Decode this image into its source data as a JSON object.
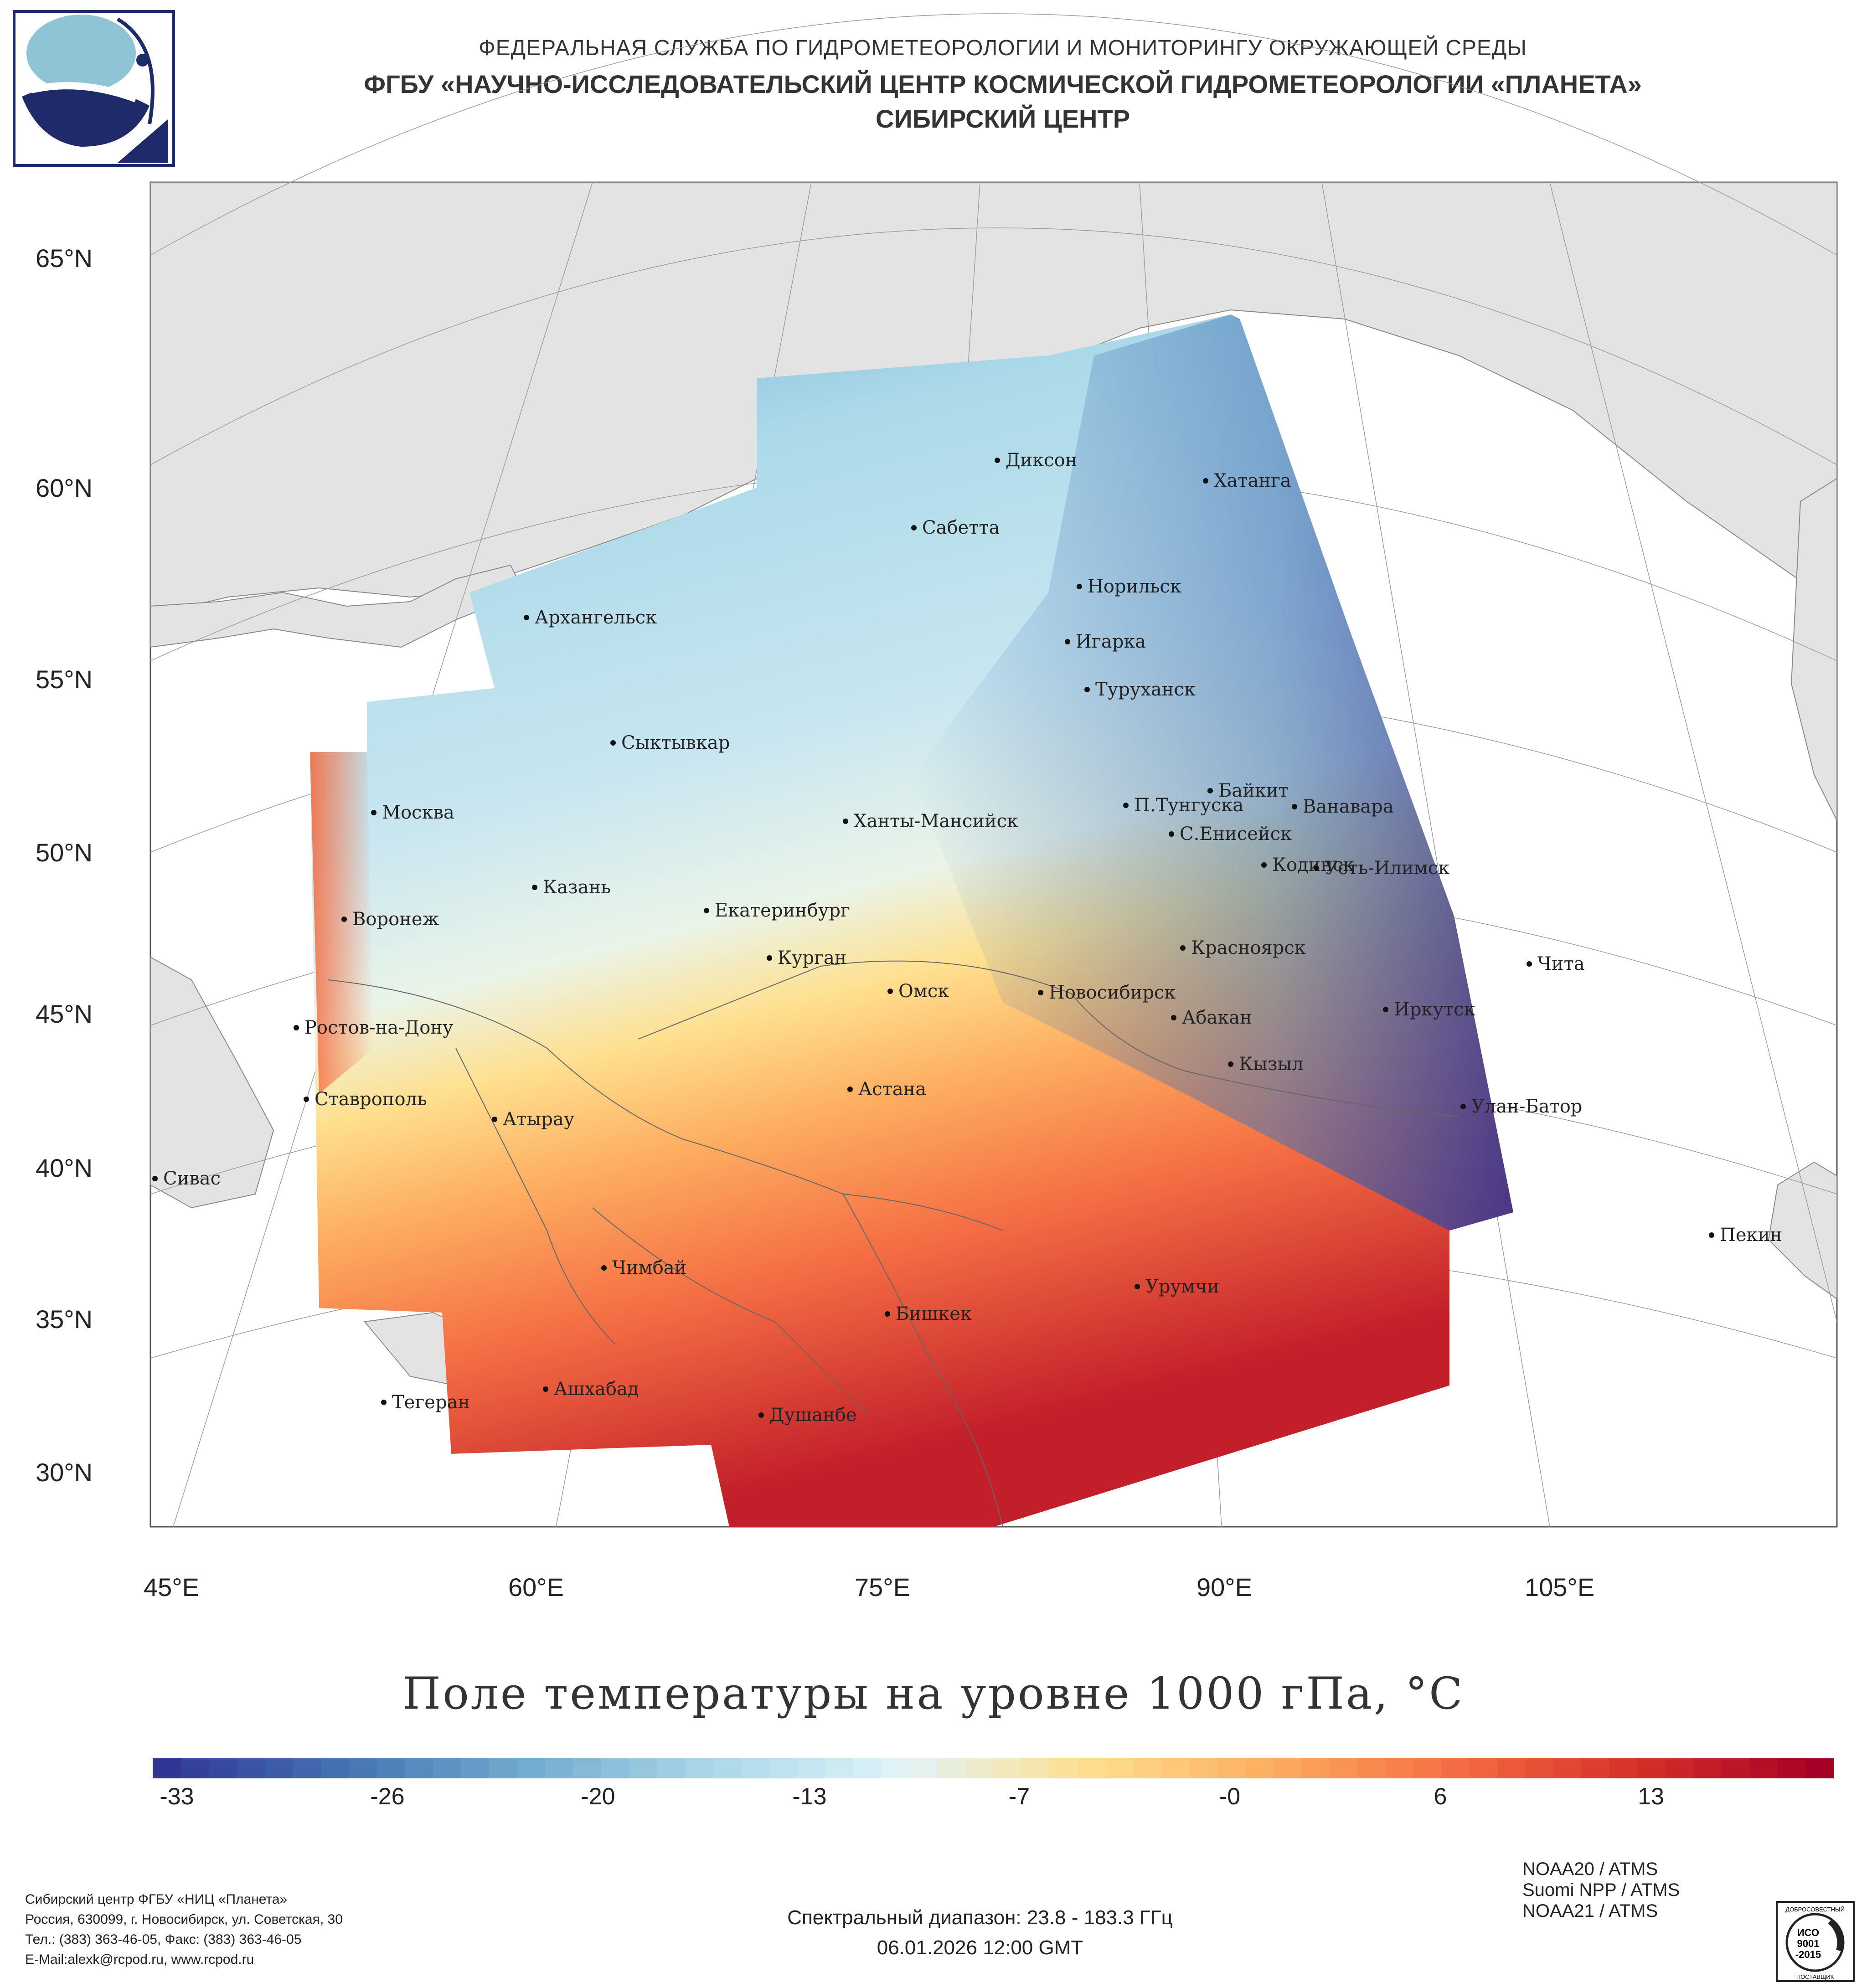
{
  "header": {
    "line1": "ФЕДЕРАЛЬНАЯ СЛУЖБА ПО ГИДРОМЕТЕОРОЛОГИИ И МОНИТОРИНГУ ОКРУЖАЮЩЕЙ СРЕДЫ",
    "line2": "ФГБУ «НАУЧНО-ИССЛЕДОВАТЕЛЬСКИЙ ЦЕНТР КОСМИЧЕСКОЙ ГИДРОМЕТЕОРОЛОГИИ «ПЛАНЕТА»",
    "line3": "СИБИРСКИЙ ЦЕНТР"
  },
  "map": {
    "lat_labels": [
      "65°N",
      "60°N",
      "55°N",
      "50°N",
      "45°N",
      "40°N",
      "35°N",
      "30°N"
    ],
    "lon_labels": [
      "45°E",
      "60°E",
      "75°E",
      "90°E",
      "105°E"
    ],
    "cities": [
      "Диксон",
      "Хатанга",
      "Сабетта",
      "Норильск",
      "Архангельск",
      "Игарка",
      "Туруханск",
      "Сыктывкар",
      "Байкит",
      "Москва",
      "П.Тунгуска",
      "Ванавара",
      "Ханты-Мансийск",
      "С.Енисейск",
      "Кодинск",
      "Усть-Илимск",
      "Казань",
      "Екатеринбург",
      "Воронеж",
      "Красноярск",
      "Курган",
      "Чита",
      "Омск",
      "Новосибирск",
      "Ростов-на-Дону",
      "Иркутск",
      "Абакан",
      "Кызыл",
      "Астана",
      "Ставрополь",
      "Улан-Батор",
      "Атырау",
      "Сивас",
      "Пекин",
      "Чимбай",
      "Урумчи",
      "Бишкек",
      "Ашхабад",
      "Тегеран",
      "Душанбе"
    ]
  },
  "title": "Поле температуры на уровне 1000 гПа, °С",
  "colorbar": {
    "ticks": [
      "-33",
      "-26",
      "-20",
      "-13",
      "-7",
      "-0",
      "6",
      "13"
    ],
    "min": -33,
    "max": 18,
    "colors": [
      "#313695",
      "#4575b4",
      "#74add1",
      "#abd9e9",
      "#e0f3f8",
      "#fee090",
      "#fdae61",
      "#f46d43",
      "#d73027",
      "#a50026"
    ]
  },
  "footer": {
    "org": "Сибирский центр ФГБУ «НИЦ «Планета»",
    "address": "Россия, 630099, г. Новосибирск, ул. Советская, 30",
    "phone": "Тел.: (383) 363-46-05, Факс: (383) 363-46-05",
    "email": "E-Mail:alexk@rcpod.ru, www.rcpod.ru",
    "spectral": "Спектральный диапазон: 23.8 - 183.3 ГГц",
    "datetime": "06.01.2026 12:00 GMT",
    "satellites": [
      "NOAA20 / ATMS",
      "Suomi NPP / ATMS",
      "NOAA21 / ATMS"
    ],
    "iso_top": "ДОБРОСОВЕСТНЫЙ",
    "iso_label": "ИСО",
    "iso_num": "9001",
    "iso_year": "-2015",
    "iso_bottom": "ПОСТАВЩИК"
  }
}
